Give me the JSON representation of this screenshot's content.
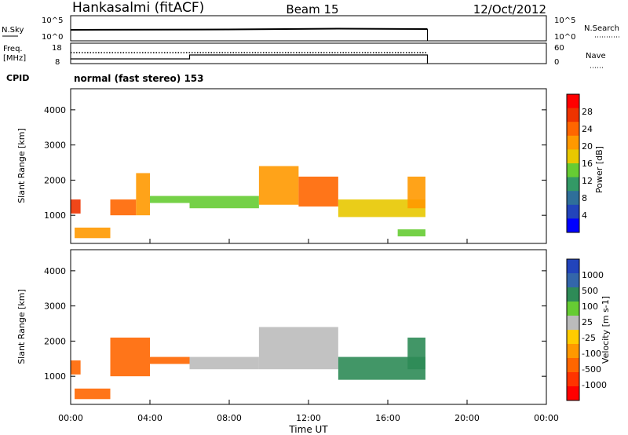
{
  "header": {
    "station": "Hankasalmi (fitACF)",
    "beam": "Beam 15",
    "date": "12/Oct/2012"
  },
  "noise_panel": {
    "left_label": "N.Sky",
    "right_label": "N.Search",
    "tick_top": "10^5",
    "tick_bottom": "10^0"
  },
  "freq_panel": {
    "left_label_1": "Freq.",
    "left_label_2": "[MHz]",
    "right_label": "Nave",
    "left_tick_top": "18",
    "left_tick_bottom": "8",
    "right_tick_top": "60",
    "right_tick_bottom": "0"
  },
  "cpid": {
    "label": "CPID",
    "text": "normal (fast stereo) 153"
  },
  "power_panel": {
    "ylabel": "Slant Range [km]",
    "yticks": [
      "4000",
      "3000",
      "2000",
      "1000"
    ],
    "colorbar_label": "Power [dB]",
    "colorbar_ticks": [
      "28",
      "24",
      "20",
      "16",
      "12",
      "8",
      "4"
    ],
    "colorbar_colors": [
      "#ff0000",
      "#ee3300",
      "#ff6600",
      "#ff9900",
      "#e8c800",
      "#66cc33",
      "#339966",
      "#2f6f9a",
      "#2244bb",
      "#0000ff"
    ]
  },
  "velocity_panel": {
    "ylabel": "Slant Range [km]",
    "yticks": [
      "4000",
      "3000",
      "2000",
      "1000"
    ],
    "colorbar_label": "Velocity [m s-1]",
    "colorbar_ticks": [
      "1000",
      "500",
      "100",
      "25",
      "-25",
      "-100",
      "-500",
      "-1000"
    ],
    "colorbar_colors": [
      "#2244bb",
      "#3366aa",
      "#2e8b57",
      "#66cc33",
      "#bbbbbb",
      "#ffcc00",
      "#ff9900",
      "#ff6600",
      "#ff3300",
      "#ff0000"
    ]
  },
  "xaxis": {
    "label": "Time UT",
    "ticks": [
      "00:00",
      "04:00",
      "08:00",
      "12:00",
      "16:00",
      "20:00",
      "00:00"
    ]
  },
  "chart_data": {
    "type": "heatmap",
    "x_unit": "hours UT",
    "xlim": [
      0,
      24
    ],
    "ylim": [
      200,
      4600
    ],
    "data_end_hour": 18,
    "power_echo_regions": [
      {
        "t": [
          0.0,
          0.5
        ],
        "range": [
          1050,
          1450
        ],
        "power_db": 26
      },
      {
        "t": [
          0.2,
          2.0
        ],
        "range": [
          350,
          650
        ],
        "power_db": 22
      },
      {
        "t": [
          2.0,
          3.3
        ],
        "range": [
          1000,
          1450
        ],
        "power_db": 25
      },
      {
        "t": [
          3.3,
          4.0
        ],
        "range": [
          1000,
          2200
        ],
        "power_db": 22
      },
      {
        "t": [
          4.0,
          6.0
        ],
        "range": [
          1350,
          1550
        ],
        "power_db": 14
      },
      {
        "t": [
          6.0,
          9.5
        ],
        "range": [
          1200,
          1550
        ],
        "power_db": 16
      },
      {
        "t": [
          9.5,
          11.5
        ],
        "range": [
          1300,
          2400
        ],
        "power_db": 20
      },
      {
        "t": [
          11.5,
          13.5
        ],
        "range": [
          1250,
          2100
        ],
        "power_db": 24
      },
      {
        "t": [
          13.5,
          17.9
        ],
        "range": [
          950,
          1450
        ],
        "power_db": 18
      },
      {
        "t": [
          17.0,
          17.9
        ],
        "range": [
          1200,
          2100
        ],
        "power_db": 20
      },
      {
        "t": [
          16.5,
          17.9
        ],
        "range": [
          400,
          600
        ],
        "power_db": 14
      }
    ],
    "velocity_echo_regions": [
      {
        "t": [
          0.0,
          0.5
        ],
        "range": [
          1050,
          1450
        ],
        "velocity": -150
      },
      {
        "t": [
          0.2,
          2.0
        ],
        "range": [
          350,
          650
        ],
        "velocity": -200
      },
      {
        "t": [
          2.0,
          4.0
        ],
        "range": [
          1000,
          2100
        ],
        "velocity": -300
      },
      {
        "t": [
          4.0,
          6.0
        ],
        "range": [
          1350,
          1550
        ],
        "velocity": -150
      },
      {
        "t": [
          6.0,
          9.5
        ],
        "range": [
          1200,
          1550
        ],
        "velocity": 0
      },
      {
        "t": [
          9.5,
          13.5
        ],
        "range": [
          1200,
          2400
        ],
        "velocity": 0
      },
      {
        "t": [
          13.5,
          17.9
        ],
        "range": [
          900,
          1550
        ],
        "velocity": 200
      },
      {
        "t": [
          17.0,
          17.9
        ],
        "range": [
          1200,
          2100
        ],
        "velocity": 150
      }
    ]
  }
}
